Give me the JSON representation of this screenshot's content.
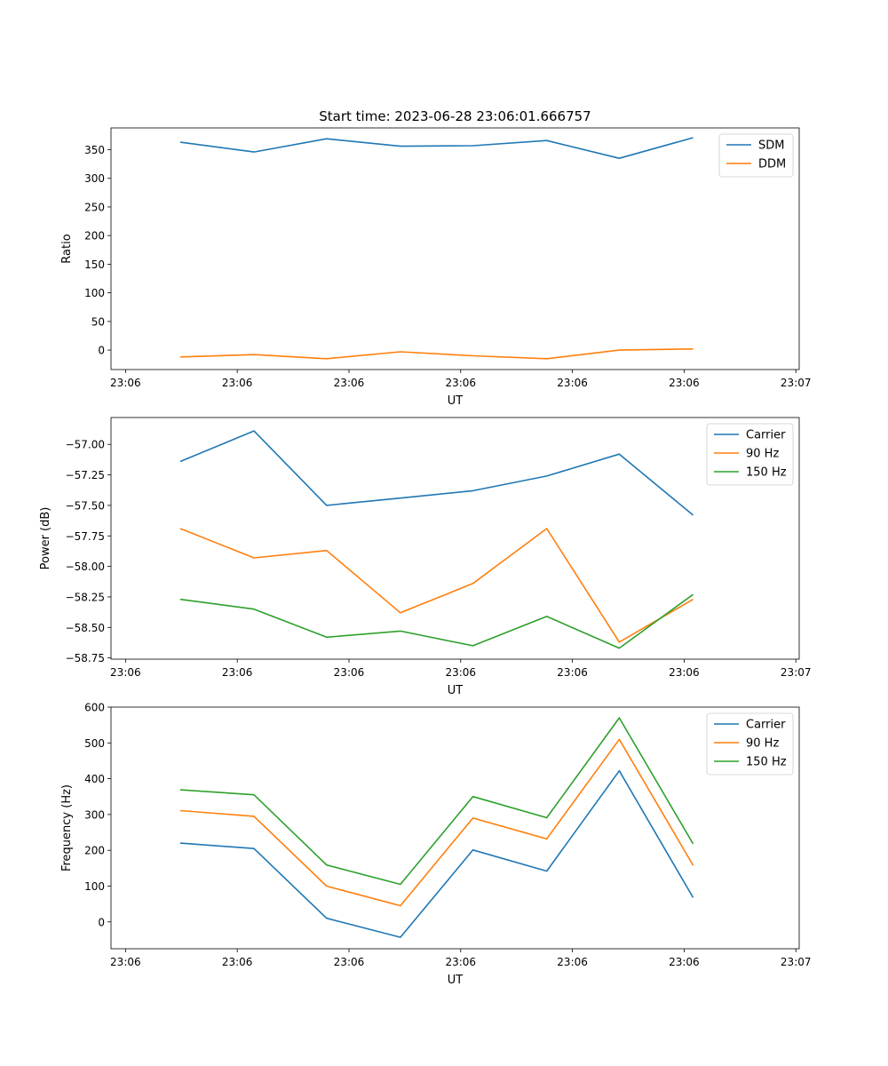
{
  "title": "Start time: 2023-06-28 23:06:01.666757",
  "colors": {
    "blue": "#1f77b4",
    "orange": "#ff7f0e",
    "green": "#2ca02c"
  },
  "chart_data": [
    {
      "type": "line",
      "ylabel": "Ratio",
      "xlabel": "UT",
      "legend": "top-right",
      "ylim": [
        -34,
        388
      ],
      "yticks": [
        0,
        50,
        100,
        150,
        200,
        250,
        300,
        350
      ],
      "ytick_labels": [
        "0",
        "50",
        "100",
        "150",
        "200",
        "250",
        "300",
        "350"
      ],
      "xticks": [
        0,
        1,
        2,
        3,
        4,
        5,
        6
      ],
      "xtick_labels": [
        "23:06",
        "23:06",
        "23:06",
        "23:06",
        "23:06",
        "23:06",
        "23:07"
      ],
      "xlim": [
        -0.13,
        6.03
      ],
      "x": [
        0.49,
        1.15,
        1.8,
        2.46,
        3.11,
        3.77,
        4.42,
        5.08
      ],
      "series": [
        {
          "name": "SDM",
          "color": "#1f77b4",
          "values": [
            363,
            346,
            369,
            356,
            357,
            366,
            335,
            371
          ]
        },
        {
          "name": "DDM",
          "color": "#ff7f0e",
          "values": [
            -12,
            -8,
            -15,
            -3,
            -10,
            -15,
            0,
            2
          ]
        }
      ]
    },
    {
      "type": "line",
      "ylabel": "Power (dB)",
      "xlabel": "UT",
      "legend": "top-right",
      "ylim": [
        -58.76,
        -56.78
      ],
      "yticks": [
        -57.0,
        -57.25,
        -57.5,
        -57.75,
        -58.0,
        -58.25,
        -58.5,
        -58.75
      ],
      "ytick_labels": [
        "−57.00",
        "−57.25",
        "−57.50",
        "−57.75",
        "−58.00",
        "−58.25",
        "−58.50",
        "−58.75"
      ],
      "xticks": [
        0,
        1,
        2,
        3,
        4,
        5,
        6
      ],
      "xtick_labels": [
        "23:06",
        "23:06",
        "23:06",
        "23:06",
        "23:06",
        "23:06",
        "23:07"
      ],
      "xlim": [
        -0.13,
        6.03
      ],
      "x": [
        0.49,
        1.15,
        1.8,
        2.46,
        3.11,
        3.77,
        4.42,
        5.08
      ],
      "series": [
        {
          "name": "Carrier",
          "color": "#1f77b4",
          "values": [
            -57.14,
            -56.89,
            -57.5,
            -57.44,
            -57.38,
            -57.26,
            -57.08,
            -57.58
          ]
        },
        {
          "name": "90 Hz",
          "color": "#ff7f0e",
          "values": [
            -57.69,
            -57.93,
            -57.87,
            -58.38,
            -58.14,
            -57.69,
            -58.62,
            -58.27
          ]
        },
        {
          "name": "150 Hz",
          "color": "#2ca02c",
          "values": [
            -58.27,
            -58.35,
            -58.58,
            -58.53,
            -58.65,
            -58.41,
            -58.67,
            -58.23
          ]
        }
      ]
    },
    {
      "type": "line",
      "ylabel": "Frequency (Hz)",
      "xlabel": "UT",
      "legend": "top-right",
      "ylim": [
        -75,
        600
      ],
      "yticks": [
        0,
        100,
        200,
        300,
        400,
        500,
        600
      ],
      "ytick_labels": [
        "0",
        "100",
        "200",
        "300",
        "400",
        "500",
        "600"
      ],
      "xticks": [
        0,
        1,
        2,
        3,
        4,
        5,
        6
      ],
      "xtick_labels": [
        "23:06",
        "23:06",
        "23:06",
        "23:06",
        "23:06",
        "23:06",
        "23:07"
      ],
      "xlim": [
        -0.13,
        6.03
      ],
      "x": [
        0.49,
        1.15,
        1.8,
        2.46,
        3.11,
        3.77,
        4.42,
        5.08
      ],
      "series": [
        {
          "name": "Carrier",
          "color": "#1f77b4",
          "values": [
            220,
            205,
            10,
            -43,
            201,
            142,
            422,
            68
          ]
        },
        {
          "name": "90 Hz",
          "color": "#ff7f0e",
          "values": [
            311,
            295,
            100,
            45,
            290,
            232,
            510,
            158
          ]
        },
        {
          "name": "150 Hz",
          "color": "#2ca02c",
          "values": [
            369,
            355,
            159,
            105,
            350,
            291,
            570,
            218
          ]
        }
      ]
    }
  ]
}
